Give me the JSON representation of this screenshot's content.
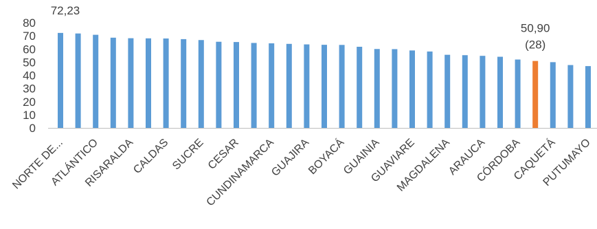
{
  "chart_data": {
    "type": "bar",
    "title": "",
    "xlabel": "",
    "ylabel": "",
    "ylim": [
      0,
      80
    ],
    "yticks": [
      0,
      10,
      20,
      30,
      40,
      50,
      60,
      70,
      80
    ],
    "grid": false,
    "legend": "none",
    "colors": {
      "default": "#5b9bd5",
      "highlight": "#ed7d31",
      "text": "#404040",
      "axis": "#bfbfbf"
    },
    "categories": [
      "NORTE DE...",
      "",
      "ATLÁNTICO",
      "",
      "RISARALDA",
      "",
      "CALDAS",
      "",
      "SUCRE",
      "",
      "CESAR",
      "",
      "CUNDINAMARCA",
      "",
      "GUAJIRA",
      "",
      "BOYACÁ",
      "",
      "GUAINIA",
      "",
      "GUAVIARE",
      "",
      "MAGDALENA",
      "",
      "ARAUCA",
      "",
      "CÓRDOBA",
      "",
      "CAQUETÁ",
      "",
      "PUTUMAYO",
      ""
    ],
    "values": [
      72.23,
      71.8,
      70.8,
      68.6,
      68.2,
      68.1,
      68.0,
      67.5,
      66.8,
      65.5,
      65.3,
      64.6,
      64.3,
      63.9,
      63.5,
      63.2,
      63.1,
      61.7,
      60.0,
      59.9,
      58.9,
      58.1,
      55.6,
      55.3,
      54.8,
      54.1,
      52.0,
      50.9,
      50.0,
      47.8,
      47.0,
      44.8
    ],
    "highlight_index": 27,
    "data_labels": [
      {
        "index": 0,
        "lines": [
          "72,23"
        ]
      },
      {
        "index": 27,
        "lines": [
          "50,90",
          "(28)"
        ]
      }
    ]
  }
}
